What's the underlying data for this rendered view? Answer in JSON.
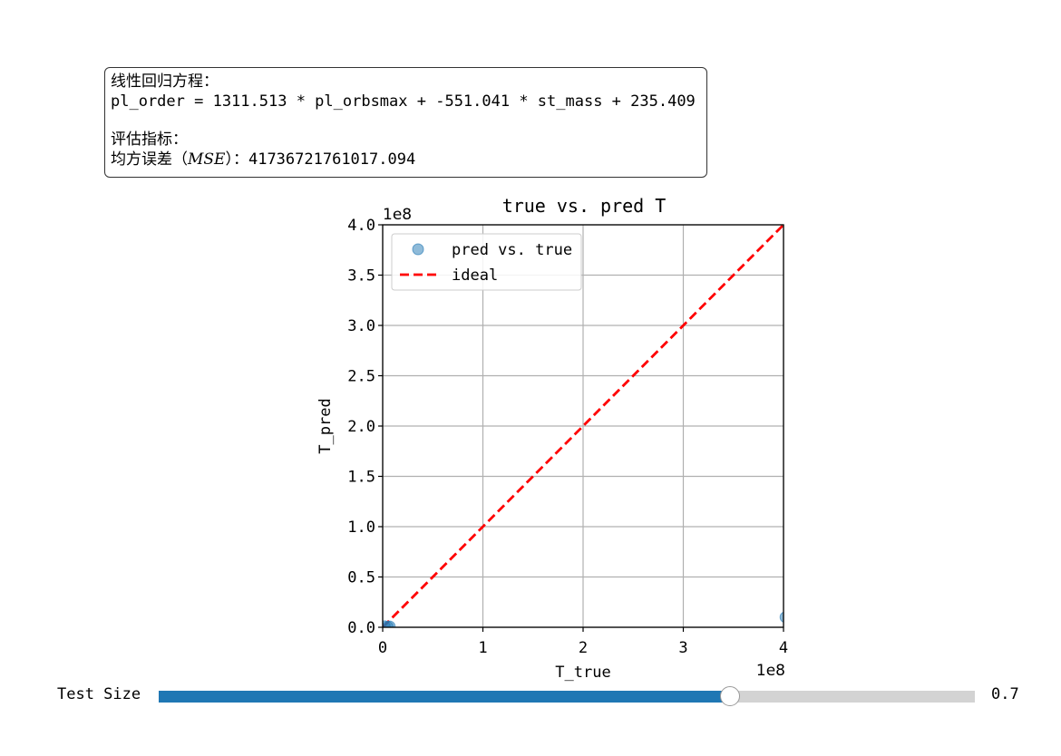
{
  "info_box": {
    "heading": "线性回归方程：",
    "equation": "pl_order = 1311.513 * pl_orbsmax + -551.041 * st_mass + 235.409",
    "metrics_heading": "评估指标：",
    "mse_prefix": "均方误差（",
    "mse_math": "MSE",
    "mse_suffix": "）：41736721761017.094"
  },
  "chart_data": {
    "type": "scatter",
    "title": "true vs. pred T",
    "xlabel": "T_true",
    "ylabel": "T_pred",
    "x_offset_label": "1e8",
    "y_offset_label": "1e8",
    "xlim": [
      0,
      4.0
    ],
    "ylim": [
      0,
      4.0
    ],
    "x_ticks": [
      0,
      1,
      2,
      3,
      4
    ],
    "x_tick_labels": [
      "0",
      "1",
      "2",
      "3",
      "4"
    ],
    "y_ticks": [
      0,
      0.5,
      1.0,
      1.5,
      2.0,
      2.5,
      3.0,
      3.5,
      4.0
    ],
    "y_tick_labels": [
      "0.0",
      "0.5",
      "1.0",
      "1.5",
      "2.0",
      "2.5",
      "3.0",
      "3.5",
      "4.0"
    ],
    "grid": true,
    "legend_position": "top-left",
    "series": [
      {
        "name": "pred vs. true",
        "kind": "scatter",
        "color": "#1f77b4",
        "points": [
          [
            0.02,
            0.01
          ],
          [
            0.05,
            0.005
          ],
          [
            0.07,
            0.008
          ],
          [
            4.02,
            0.1
          ]
        ]
      },
      {
        "name": "ideal",
        "kind": "line",
        "style": "dashed",
        "color": "#ff0000",
        "points": [
          [
            0,
            0
          ],
          [
            4.02,
            4.02
          ]
        ]
      }
    ]
  },
  "slider": {
    "label": "Test Size",
    "value": 0.7,
    "value_label": "0.7",
    "fill_color": "#1f77b4"
  }
}
